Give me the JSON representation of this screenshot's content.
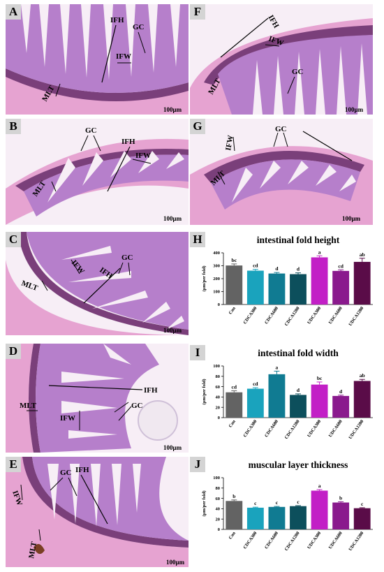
{
  "panels": {
    "A": {
      "label": "A",
      "annotations": [
        "IFH",
        "GC",
        "IFW",
        "MLT"
      ],
      "scale": "100μm"
    },
    "B": {
      "label": "B",
      "annotations": [
        "GC",
        "IFH",
        "IFW",
        "MLT"
      ],
      "scale": "100μm"
    },
    "C": {
      "label": "C",
      "annotations": [
        "GC",
        "IFW",
        "IFH",
        "MLT"
      ],
      "scale": "100μm"
    },
    "D": {
      "label": "D",
      "annotations": [
        "IFH",
        "MLT",
        "GC",
        "IFW"
      ],
      "scale": "100μm"
    },
    "E": {
      "label": "E",
      "annotations": [
        "IFH",
        "GC",
        "IFW",
        "MLT"
      ],
      "scale": "100μm"
    },
    "F": {
      "label": "F",
      "annotations": [
        "IFH",
        "IFW",
        "GC",
        "MLT"
      ],
      "scale": "100μm"
    },
    "G": {
      "label": "G",
      "annotations": [
        "GC",
        "IFW",
        "MLT"
      ],
      "scale": "100μm"
    }
  },
  "colors": {
    "Con": "#636363",
    "CDCA300": "#1aa3bd",
    "CDCA600": "#107b92",
    "CDCA1200": "#0c4f5c",
    "UDCA300": "#c21fc6",
    "UDCA600": "#8a1a8d",
    "UDCA1200": "#5a0c48"
  },
  "chart_data": [
    {
      "panel": "H",
      "type": "bar",
      "title": "intestinal fold height",
      "ylabel": "(μm/per fold)",
      "ylim": [
        0,
        400
      ],
      "yticks": [
        0,
        100,
        200,
        300,
        400
      ],
      "categories": [
        "Con",
        "CDCA300",
        "CDCA600",
        "CDCA1200",
        "UDCA300",
        "UDCA600",
        "UDCA1200"
      ],
      "values": [
        302,
        262,
        240,
        235,
        365,
        260,
        330
      ],
      "errors": [
        12,
        10,
        8,
        10,
        12,
        8,
        28
      ],
      "letters": [
        "bc",
        "cd",
        "d",
        "d",
        "a",
        "cd",
        "ab"
      ]
    },
    {
      "panel": "I",
      "type": "bar",
      "title": "intestinal fold width",
      "ylabel": "(μm/per fold)",
      "ylim": [
        0,
        100
      ],
      "yticks": [
        0,
        20,
        40,
        60,
        80,
        100
      ],
      "categories": [
        "Con",
        "CDCA300",
        "CDCA600",
        "CDCA1200",
        "UDCA300",
        "UDCA600",
        "UDCA1200"
      ],
      "values": [
        49,
        56,
        84,
        44,
        64,
        42,
        71
      ],
      "errors": [
        3,
        2,
        6,
        2,
        5,
        1.5,
        3
      ],
      "letters": [
        "cd",
        "cd",
        "a",
        "d",
        "bc",
        "d",
        "ab"
      ]
    },
    {
      "panel": "J",
      "type": "bar",
      "title": "muscular layer thickness",
      "ylabel": "(μm/per fold)",
      "ylim": [
        0,
        100
      ],
      "yticks": [
        0,
        20,
        40,
        60,
        80,
        100
      ],
      "categories": [
        "Con",
        "CDCA300",
        "CDCA600",
        "CDCA1200",
        "UDCA300",
        "UDCA600",
        "UDCA1200"
      ],
      "values": [
        55,
        42,
        43.5,
        45,
        75,
        52,
        41
      ],
      "errors": [
        2,
        1,
        1,
        1,
        2,
        1.5,
        1
      ],
      "letters": [
        "b",
        "c",
        "c",
        "c",
        "a",
        "b",
        "c"
      ]
    }
  ]
}
